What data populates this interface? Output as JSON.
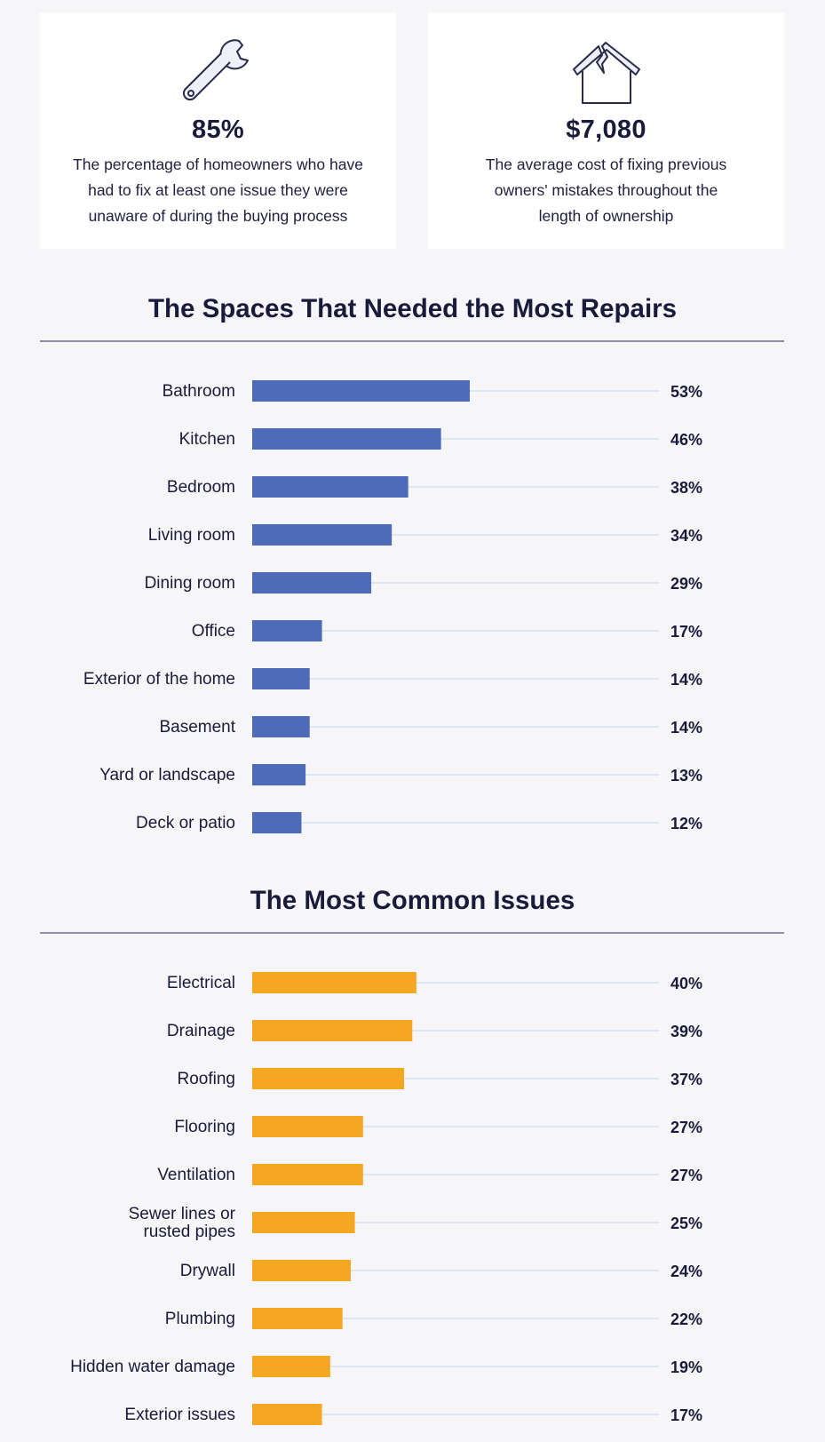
{
  "stats": {
    "left": {
      "icon": "wrench-icon",
      "value": "85%",
      "lines": [
        "The percentage of homeowners who have",
        "had to fix at least one issue they were",
        "unaware of during the buying process"
      ]
    },
    "right": {
      "icon": "broken-house-icon",
      "value": "$7,080",
      "lines": [
        "The average cost of fixing previous",
        "owners' mistakes throughout the",
        "length of ownership"
      ]
    }
  },
  "chart_data": [
    {
      "type": "bar",
      "orientation": "horizontal",
      "title": "The Spaces That Needed the Most Repairs",
      "categories": [
        [
          "Bathroom"
        ],
        [
          "Kitchen"
        ],
        [
          "Bedroom"
        ],
        [
          "Living room"
        ],
        [
          "Dining room"
        ],
        [
          "Office"
        ],
        [
          "Exterior of the home"
        ],
        [
          "Basement"
        ],
        [
          "Yard or landscape"
        ],
        [
          "Deck or patio"
        ]
      ],
      "values": [
        53,
        46,
        38,
        34,
        29,
        17,
        14,
        14,
        13,
        12
      ],
      "value_labels": [
        "53%",
        "46%",
        "38%",
        "34%",
        "29%",
        "17%",
        "14%",
        "14%",
        "13%",
        "12%"
      ],
      "xlim": [
        0,
        100
      ],
      "color": "#4e6bb8",
      "grid": false
    },
    {
      "type": "bar",
      "orientation": "horizontal",
      "title": "The Most Common Issues",
      "categories": [
        [
          "Electrical"
        ],
        [
          "Drainage"
        ],
        [
          "Roofing"
        ],
        [
          "Flooring"
        ],
        [
          "Ventilation"
        ],
        [
          "Sewer lines or",
          "rusted pipes"
        ],
        [
          "Drywall"
        ],
        [
          "Plumbing"
        ],
        [
          "Hidden water damage"
        ],
        [
          "Exterior issues"
        ]
      ],
      "values": [
        40,
        39,
        37,
        27,
        27,
        25,
        24,
        22,
        19,
        17
      ],
      "value_labels": [
        "40%",
        "39%",
        "37%",
        "27%",
        "27%",
        "25%",
        "24%",
        "22%",
        "19%",
        "17%"
      ],
      "xlim": [
        0,
        100
      ],
      "color": "#f5a623",
      "grid": false
    }
  ],
  "colors": {
    "background": "#f6f6f8",
    "card": "#ffffff",
    "text": "#1a1a3a",
    "track": "#dde6f3"
  }
}
